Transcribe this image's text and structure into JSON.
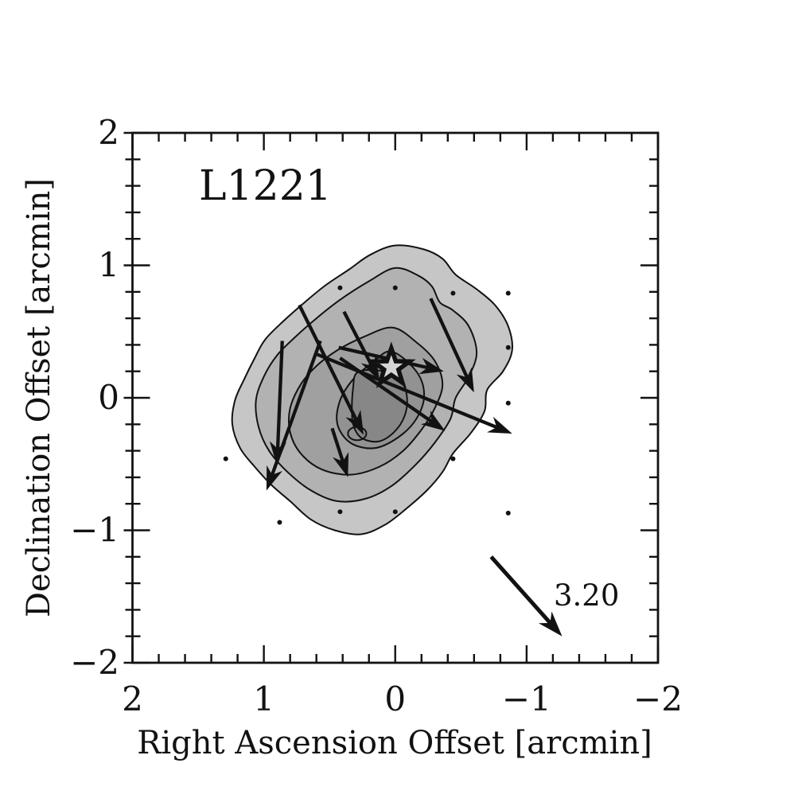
{
  "figure": {
    "title": "L1221",
    "xlabel": "Right Ascension Offset [arcmin]",
    "ylabel": "Declination Offset [arcmin]",
    "reference_label": "3.20"
  },
  "chart_data": {
    "type": "contour-vector-map",
    "title": "L1221",
    "xlabel": "Right Ascension Offset [arcmin]",
    "ylabel": "Declination Offset [arcmin]",
    "xlim": [
      2,
      -2
    ],
    "ylim": [
      -2,
      2
    ],
    "grid": false,
    "x_ticks": [
      {
        "v": 2,
        "label": "2"
      },
      {
        "v": 1,
        "label": "1"
      },
      {
        "v": 0,
        "label": "0"
      },
      {
        "v": -1,
        "label": "−1"
      },
      {
        "v": -2,
        "label": "−2"
      }
    ],
    "y_ticks": [
      {
        "v": 2,
        "label": "2"
      },
      {
        "v": 1,
        "label": "1"
      },
      {
        "v": 0,
        "label": "0"
      },
      {
        "v": -1,
        "label": "−1"
      },
      {
        "v": -2,
        "label": "−2"
      }
    ],
    "minor_tick_step": 0.2,
    "colors": {
      "line": "#121212",
      "background": "#ffffff",
      "star_fill": "#d5d5d5",
      "contour_fills": [
        "#c6c6c6",
        "#b2b2b2",
        "#a0a0a0",
        "#929292",
        "#878787"
      ]
    },
    "star": {
      "x": 0.03,
      "y": 0.23
    },
    "dots": [
      [
        0.42,
        0.83
      ],
      [
        0.0,
        0.83
      ],
      [
        -0.44,
        0.79
      ],
      [
        -0.86,
        0.79
      ],
      [
        -0.86,
        0.38
      ],
      [
        1.29,
        -0.46
      ],
      [
        -0.44,
        -0.46
      ],
      [
        -0.86,
        -0.04
      ],
      [
        0.42,
        -0.86
      ],
      [
        0.0,
        -0.86
      ],
      [
        0.88,
        -0.94
      ],
      [
        -0.86,
        -0.87
      ]
    ],
    "vectors": [
      {
        "x1": 0.43,
        "y1": 0.38,
        "x2": -0.37,
        "y2": 0.2
      },
      {
        "x1": 0.73,
        "y1": 0.7,
        "x2": 0.24,
        "y2": -0.28
      },
      {
        "x1": 0.86,
        "y1": 0.43,
        "x2": 0.9,
        "y2": -0.51
      },
      {
        "x1": 0.57,
        "y1": 0.43,
        "x2": 0.98,
        "y2": -0.7
      },
      {
        "x1": 0.39,
        "y1": 0.65,
        "x2": 0.12,
        "y2": 0.13
      },
      {
        "x1": 0.6,
        "y1": 0.33,
        "x2": -0.89,
        "y2": -0.27
      },
      {
        "x1": -0.27,
        "y1": 0.75,
        "x2": -0.6,
        "y2": 0.04
      },
      {
        "x1": 0.42,
        "y1": 0.3,
        "x2": -0.38,
        "y2": -0.25
      },
      {
        "x1": 0.48,
        "y1": -0.23,
        "x2": 0.36,
        "y2": -0.6
      }
    ],
    "reference_vector": {
      "x1": -0.73,
      "y1": -1.2,
      "x2": -1.27,
      "y2": -1.8,
      "label": "3.20"
    },
    "contours": [
      {
        "level": 1,
        "points": [
          [
            0.0,
            1.15
          ],
          [
            -0.22,
            1.12
          ],
          [
            -0.36,
            1.05
          ],
          [
            -0.46,
            0.93
          ],
          [
            -0.62,
            0.82
          ],
          [
            -0.76,
            0.7
          ],
          [
            -0.86,
            0.54
          ],
          [
            -0.89,
            0.36
          ],
          [
            -0.82,
            0.2
          ],
          [
            -0.7,
            0.06
          ],
          [
            -0.68,
            -0.1
          ],
          [
            -0.58,
            -0.26
          ],
          [
            -0.44,
            -0.42
          ],
          [
            -0.36,
            -0.56
          ],
          [
            -0.24,
            -0.7
          ],
          [
            -0.08,
            -0.84
          ],
          [
            0.08,
            -0.96
          ],
          [
            0.26,
            -1.03
          ],
          [
            0.46,
            -1.0
          ],
          [
            0.64,
            -0.92
          ],
          [
            0.8,
            -0.78
          ],
          [
            0.94,
            -0.66
          ],
          [
            1.07,
            -0.52
          ],
          [
            1.18,
            -0.38
          ],
          [
            1.24,
            -0.2
          ],
          [
            1.22,
            -0.02
          ],
          [
            1.15,
            0.14
          ],
          [
            1.07,
            0.3
          ],
          [
            0.99,
            0.44
          ],
          [
            0.85,
            0.58
          ],
          [
            0.69,
            0.72
          ],
          [
            0.53,
            0.85
          ],
          [
            0.35,
            0.97
          ],
          [
            0.19,
            1.08
          ]
        ]
      },
      {
        "level": 2,
        "points": [
          [
            0.0,
            0.98
          ],
          [
            -0.18,
            0.92
          ],
          [
            -0.28,
            0.84
          ],
          [
            -0.34,
            0.72
          ],
          [
            -0.44,
            0.66
          ],
          [
            -0.56,
            0.54
          ],
          [
            -0.62,
            0.34
          ],
          [
            -0.56,
            0.16
          ],
          [
            -0.46,
            0.0
          ],
          [
            -0.42,
            -0.16
          ],
          [
            -0.3,
            -0.34
          ],
          [
            -0.16,
            -0.5
          ],
          [
            0.02,
            -0.66
          ],
          [
            0.22,
            -0.76
          ],
          [
            0.44,
            -0.78
          ],
          [
            0.64,
            -0.7
          ],
          [
            0.82,
            -0.56
          ],
          [
            0.96,
            -0.4
          ],
          [
            1.04,
            -0.22
          ],
          [
            1.06,
            -0.02
          ],
          [
            1.0,
            0.16
          ],
          [
            0.9,
            0.32
          ],
          [
            0.76,
            0.46
          ],
          [
            0.6,
            0.6
          ],
          [
            0.42,
            0.74
          ],
          [
            0.2,
            0.88
          ]
        ]
      },
      {
        "level": 3,
        "points": [
          [
            0.02,
            0.53
          ],
          [
            -0.16,
            0.42
          ],
          [
            -0.3,
            0.28
          ],
          [
            -0.36,
            0.1
          ],
          [
            -0.3,
            -0.08
          ],
          [
            -0.2,
            -0.24
          ],
          [
            -0.06,
            -0.4
          ],
          [
            0.12,
            -0.52
          ],
          [
            0.34,
            -0.58
          ],
          [
            0.56,
            -0.54
          ],
          [
            0.72,
            -0.42
          ],
          [
            0.8,
            -0.26
          ],
          [
            0.8,
            -0.08
          ],
          [
            0.72,
            0.1
          ],
          [
            0.6,
            0.24
          ],
          [
            0.44,
            0.36
          ],
          [
            0.24,
            0.46
          ]
        ]
      },
      {
        "level": 4,
        "points": [
          [
            0.03,
            0.35
          ],
          [
            -0.16,
            0.2
          ],
          [
            -0.22,
            0.02
          ],
          [
            -0.16,
            -0.16
          ],
          [
            -0.02,
            -0.3
          ],
          [
            0.16,
            -0.38
          ],
          [
            0.34,
            -0.34
          ],
          [
            0.44,
            -0.2
          ],
          [
            0.42,
            -0.02
          ],
          [
            0.32,
            0.14
          ],
          [
            0.18,
            0.26
          ]
        ]
      },
      {
        "level": 5,
        "points": [
          [
            0.3,
            0.18
          ],
          [
            0.21,
            0.21
          ],
          [
            0.04,
            0.19
          ],
          [
            -0.05,
            0.12
          ],
          [
            -0.09,
            0.0
          ],
          [
            -0.07,
            -0.14
          ],
          [
            0.01,
            -0.26
          ],
          [
            0.13,
            -0.33
          ],
          [
            0.26,
            -0.3
          ],
          [
            0.32,
            -0.2
          ],
          [
            0.33,
            -0.06
          ],
          [
            0.32,
            0.08
          ]
        ]
      }
    ],
    "inner_loop": {
      "x": 0.29,
      "y": -0.27,
      "rx": 0.07,
      "ry": 0.05
    }
  }
}
